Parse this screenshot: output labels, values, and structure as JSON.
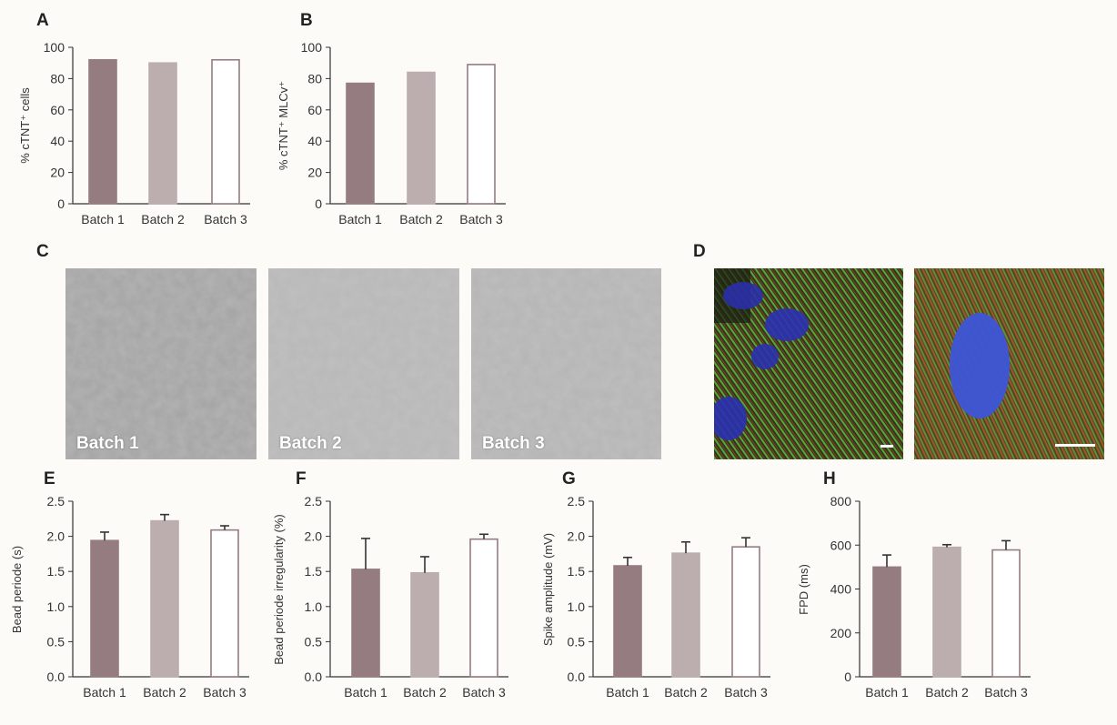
{
  "panels": {
    "A": "A",
    "B": "B",
    "C": "C",
    "D": "D",
    "E": "E",
    "F": "F",
    "G": "G",
    "H": "H"
  },
  "colors": {
    "batch1": "#957c80",
    "batch2": "#bcadaf",
    "batch3_fill": "#ffffff",
    "batch3_stroke": "#957c80",
    "axis": "#333333"
  },
  "brightfield": {
    "labels": [
      "Batch 1",
      "Batch 2",
      "Batch 3"
    ]
  },
  "fluorescence": {
    "panels": [
      "left",
      "right"
    ],
    "channels": [
      "green",
      "red",
      "blue"
    ]
  },
  "chart_data": [
    {
      "id": "A",
      "type": "bar",
      "categories": [
        "Batch 1",
        "Batch 2",
        "Batch 3"
      ],
      "values": [
        92,
        90,
        92
      ],
      "ylabel": "% cTNT⁺ cells",
      "ylim": [
        0,
        100
      ],
      "yticks": [
        "0",
        "20",
        "40",
        "60",
        "80",
        "100"
      ]
    },
    {
      "id": "B",
      "type": "bar",
      "categories": [
        "Batch 1",
        "Batch 2",
        "Batch 3"
      ],
      "values": [
        77,
        84,
        89
      ],
      "ylabel": "% cTNT⁺ MLCv⁺",
      "ylim": [
        0,
        100
      ],
      "yticks": [
        "0",
        "20",
        "40",
        "60",
        "80",
        "100"
      ]
    },
    {
      "id": "E",
      "type": "bar",
      "categories": [
        "Batch 1",
        "Batch 2",
        "Batch 3"
      ],
      "values": [
        1.94,
        2.22,
        2.09
      ],
      "errors": [
        0.12,
        0.09,
        0.06
      ],
      "ylabel": "Bead periode (s)",
      "ylim": [
        0,
        2.5
      ],
      "yticks": [
        "0.0",
        "0.5",
        "1.0",
        "1.5",
        "2.0",
        "2.5"
      ]
    },
    {
      "id": "F",
      "type": "bar",
      "categories": [
        "Batch 1",
        "Batch 2",
        "Batch 3"
      ],
      "values": [
        1.53,
        1.48,
        1.96
      ],
      "errors": [
        0.44,
        0.23,
        0.07
      ],
      "ylabel": "Bead periode irregularity (%)",
      "ylim": [
        0,
        2.5
      ],
      "yticks": [
        "0.0",
        "0.5",
        "1.0",
        "1.5",
        "2.0",
        "2.5"
      ]
    },
    {
      "id": "G",
      "type": "bar",
      "categories": [
        "Batch 1",
        "Batch 2",
        "Batch 3"
      ],
      "values": [
        1.58,
        1.76,
        1.85
      ],
      "errors": [
        0.12,
        0.16,
        0.13
      ],
      "ylabel": "Spike amplitude (mV)",
      "ylim": [
        0,
        2.5
      ],
      "yticks": [
        "0.0",
        "0.5",
        "1.0",
        "1.5",
        "2.0",
        "2.5"
      ]
    },
    {
      "id": "H",
      "type": "bar",
      "categories": [
        "Batch 1",
        "Batch 2",
        "Batch 3"
      ],
      "values": [
        500,
        590,
        578
      ],
      "errors": [
        55,
        12,
        42
      ],
      "ylabel": "FPD (ms)",
      "ylim": [
        0,
        800
      ],
      "yticks": [
        "0",
        "200",
        "400",
        "600",
        "800"
      ]
    }
  ]
}
